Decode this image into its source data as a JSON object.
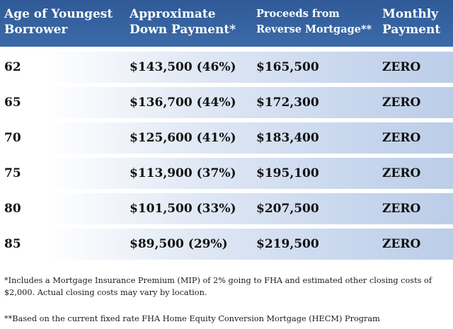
{
  "table": {
    "headers": {
      "age": [
        "Age of Youngest",
        "Borrower"
      ],
      "down_payment": [
        "Approximate",
        "Down Payment*"
      ],
      "proceeds": [
        "Proceeds from",
        "Reverse Mortgage**"
      ],
      "payment": [
        "Monthly",
        "Payment"
      ]
    },
    "rows": [
      {
        "age": "62",
        "down_payment": "$143,500 (46%)",
        "proceeds": "$165,500",
        "payment": "ZERO"
      },
      {
        "age": "65",
        "down_payment": "$136,700 (44%)",
        "proceeds": "$172,300",
        "payment": "ZERO"
      },
      {
        "age": "70",
        "down_payment": "$125,600 (41%)",
        "proceeds": "$183,400",
        "payment": "ZERO"
      },
      {
        "age": "75",
        "down_payment": "$113,900 (37%)",
        "proceeds": "$195,100",
        "payment": "ZERO"
      },
      {
        "age": "80",
        "down_payment": "$101,500 (33%)",
        "proceeds": "$207,500",
        "payment": "ZERO"
      },
      {
        "age": "85",
        "down_payment": "$89,500 (29%)",
        "proceeds": "$219,500",
        "payment": "ZERO"
      }
    ]
  },
  "footnotes": {
    "note1_line1": "*Includes a Mortgage Insurance Premium (MIP) of 2% going to FHA and estimated other closing costs of",
    "note1_line2": "$2,000.  Actual closing costs may vary by location.",
    "note2": "**Based on the current fixed rate FHA Home Equity Conversion Mortgage (HECM) Program"
  },
  "colors": {
    "header_bg": "#3461a0",
    "row_gradient_end": "#bccde8",
    "text": "#111111"
  }
}
